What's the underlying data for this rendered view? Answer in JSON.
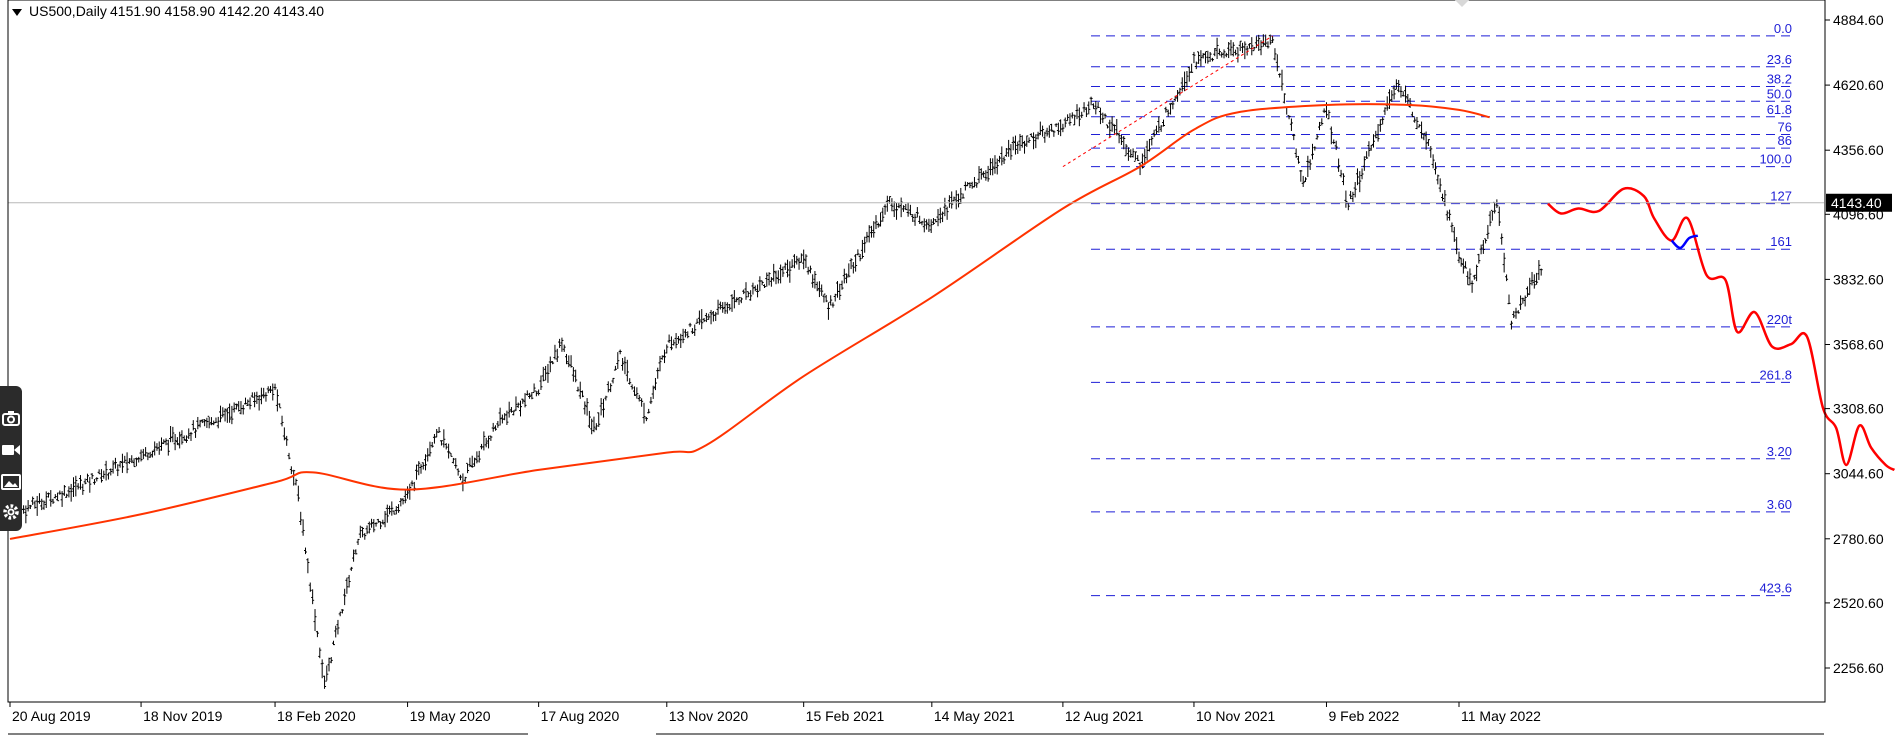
{
  "header": {
    "symbol": "US500,Daily",
    "ohlc": "4151.90 4158.90 4142.20 4143.40"
  },
  "toolbar": {
    "icons": [
      "camera-icon",
      "video-icon",
      "image-icon",
      "gear-icon"
    ]
  },
  "colors": {
    "candle": "#000000",
    "ma": "#ff3300",
    "fib": "#1f1fd6",
    "projection_red": "#ff0000",
    "projection_blue": "#0000ff",
    "trend": "#ff0000",
    "price_tag_bg": "#000000"
  },
  "chart_data": {
    "type": "line",
    "title": "US500,Daily",
    "ylim": [
      2150,
      4900
    ],
    "y_ticks": [
      4884.6,
      4620.6,
      4356.6,
      4096.6,
      3832.6,
      3568.6,
      3308.6,
      3044.6,
      2780.6,
      2520.6,
      2256.6
    ],
    "y_tick_labels": [
      "4884.60",
      "4620.60",
      "4356.60",
      "4096.60",
      "3832.60",
      "3568.60",
      "3308.60",
      "3044.60",
      "2780.60",
      "2520.60",
      "2256.60"
    ],
    "x_tick_labels": [
      "20 Aug 2019",
      "18 Nov 2019",
      "18 Feb 2020",
      "19 May 2020",
      "17 Aug 2020",
      "13 Nov 2020",
      "15 Feb 2021",
      "14 May 2021",
      "12 Aug 2021",
      "10 Nov 2021",
      "9 Feb 2022",
      "11 May 2022"
    ],
    "current_price": 4143.4,
    "current_price_label": "4143.40",
    "grid": false,
    "fib_levels": [
      {
        "label": "0.0",
        "price": 4820
      },
      {
        "label": "23.6",
        "price": 4695
      },
      {
        "label": "38.2",
        "price": 4615
      },
      {
        "label": "50.0",
        "price": 4555
      },
      {
        "label": "61.8",
        "price": 4492
      },
      {
        "label": "76",
        "price": 4420
      },
      {
        "label": "86",
        "price": 4365
      },
      {
        "label": "100.0",
        "price": 4290
      },
      {
        "label": "127",
        "price": 4140
      },
      {
        "label": "161",
        "price": 3955
      },
      {
        "label": "220t",
        "price": 3640
      },
      {
        "label": "261.8",
        "price": 3415
      },
      {
        "label": "3.20",
        "price": 3105
      },
      {
        "label": "3.60",
        "price": 2890
      },
      {
        "label": "423.6",
        "price": 2550
      }
    ],
    "series": [
      {
        "type": "ohlc",
        "x": [
          "2019-08-20",
          "2019-10-01",
          "2019-11-18",
          "2020-01-10",
          "2020-02-18",
          "2020-03-05",
          "2020-03-23",
          "2020-04-15",
          "2020-05-19",
          "2020-06-08",
          "2020-06-26",
          "2020-07-20",
          "2020-08-17",
          "2020-09-02",
          "2020-09-24",
          "2020-10-12",
          "2020-10-30",
          "2020-11-13",
          "2021-01-08",
          "2021-02-15",
          "2021-03-04",
          "2021-04-15",
          "2021-05-12",
          "2021-07-12",
          "2021-08-12",
          "2021-09-02",
          "2021-10-04",
          "2021-11-10",
          "2022-01-03",
          "2022-01-24",
          "2022-02-09",
          "2022-02-24",
          "2022-03-29",
          "2022-04-20",
          "2022-05-11",
          "2022-05-20",
          "2022-06-06",
          "2022-06-16",
          "2022-07-08"
        ],
        "values": [
          2880,
          2980,
          3120,
          3270,
          3390,
          2950,
          2190,
          2780,
          2950,
          3220,
          3020,
          3250,
          3390,
          3580,
          3220,
          3520,
          3280,
          3570,
          3780,
          3920,
          3720,
          4150,
          4060,
          4380,
          4460,
          4545,
          4300,
          4720,
          4800,
          4220,
          4530,
          4130,
          4630,
          4400,
          3930,
          3810,
          4160,
          3660,
          3900
        ]
      },
      {
        "name": "",
        "type": "moving-average",
        "x": [
          "2019-08-20",
          "2019-11-18",
          "2020-02-18",
          "2020-03-15",
          "2020-05-19",
          "2020-08-17",
          "2020-11-13",
          "2020-12-10",
          "2021-02-15",
          "2021-05-14",
          "2021-08-12",
          "2021-10-04",
          "2021-11-10",
          "2021-12-10",
          "2022-02-09",
          "2022-04-07",
          "2022-05-11",
          "2022-06-01"
        ],
        "values": [
          2780,
          2880,
          3010,
          3050,
          2980,
          3060,
          3130,
          3160,
          3440,
          3760,
          4120,
          4290,
          4440,
          4510,
          4540,
          4540,
          4520,
          4490
        ]
      },
      {
        "name": "",
        "type": "projection",
        "x": [
          "2022-07-11",
          "2022-07-20",
          "2022-08-01",
          "2022-08-15",
          "2022-09-01",
          "2022-09-15",
          "2022-09-22",
          "2022-10-04",
          "2022-10-15",
          "2022-10-28",
          "2022-11-10",
          "2022-11-18",
          "2022-11-30",
          "2022-12-12",
          "2022-12-25",
          "2023-01-05",
          "2023-01-16",
          "2023-01-25",
          "2023-02-01",
          "2023-02-10",
          "2023-02-18",
          "2023-02-28",
          "2023-03-06"
        ],
        "values": [
          4140,
          4100,
          4120,
          4110,
          4200,
          4170,
          4080,
          3990,
          4080,
          3850,
          3830,
          3620,
          3700,
          3560,
          3570,
          3600,
          3310,
          3230,
          3080,
          3240,
          3150,
          3080,
          3060
        ]
      },
      {
        "name": "",
        "type": "projection",
        "x": [
          "2022-10-04",
          "2022-10-10",
          "2022-10-16",
          "2022-10-22"
        ],
        "values": [
          3990,
          3960,
          4000,
          4010
        ]
      }
    ]
  }
}
